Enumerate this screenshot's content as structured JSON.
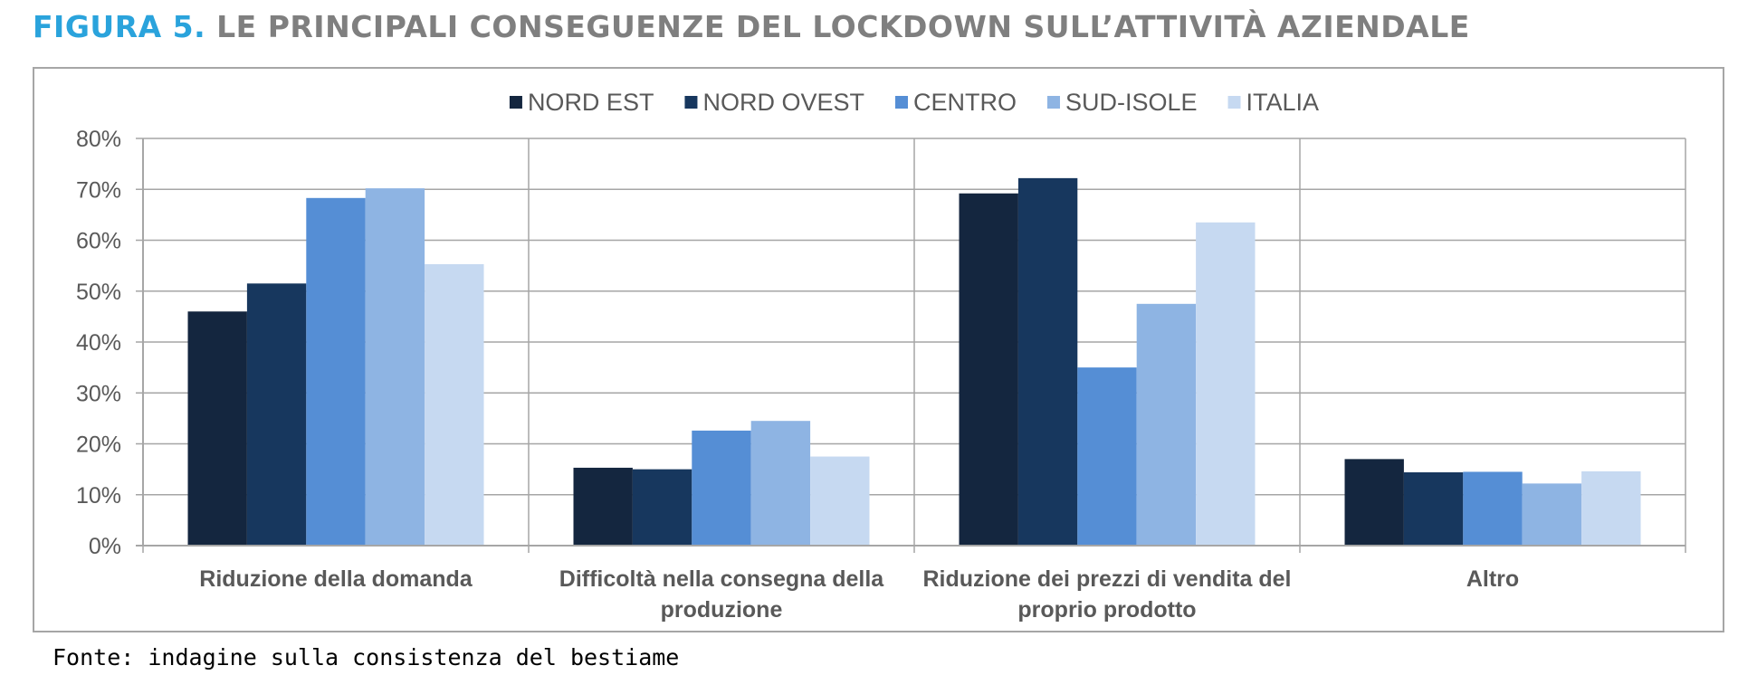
{
  "figure": {
    "label": "FIGURA 5.",
    "title": "LE PRINCIPALI CONSEGUENZE DEL LOCKDOWN SULL’ATTIVITÀ AZIENDALE",
    "source": "Fonte: indagine sulla consistenza del bestiame"
  },
  "chart_data": {
    "type": "bar",
    "categories": [
      [
        "Riduzione della domanda"
      ],
      [
        "Difficoltà nella consegna della",
        "produzione"
      ],
      [
        "Riduzione dei prezzi di vendita del",
        "proprio prodotto"
      ],
      [
        "Altro"
      ]
    ],
    "series": [
      {
        "name": "NORD EST",
        "color": "#14263f",
        "values": [
          46,
          15.3,
          69.2,
          17
        ]
      },
      {
        "name": "NORD OVEST",
        "color": "#17375e",
        "values": [
          51.5,
          15,
          72.2,
          14.4
        ]
      },
      {
        "name": "CENTRO",
        "color": "#558ed5",
        "values": [
          68.3,
          22.6,
          35,
          14.5
        ]
      },
      {
        "name": "SUD-ISOLE",
        "color": "#8eb4e3",
        "values": [
          70.2,
          24.5,
          47.5,
          12.2
        ]
      },
      {
        "name": "ITALIA",
        "color": "#c6d9f1",
        "values": [
          55.3,
          17.5,
          63.5,
          14.6
        ]
      }
    ],
    "ylim": [
      0,
      80
    ],
    "yticks": [
      "0%",
      "10%",
      "20%",
      "30%",
      "40%",
      "50%",
      "60%",
      "70%",
      "80%"
    ],
    "grid": true,
    "legend_position": "top-center"
  }
}
